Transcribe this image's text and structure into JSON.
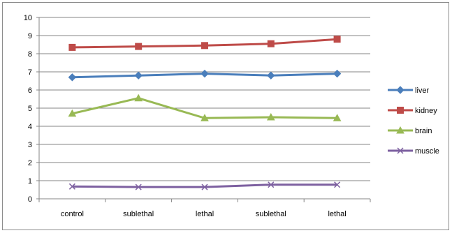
{
  "chart_data": {
    "type": "line",
    "categories": [
      "control",
      "sublethal",
      "lethal",
      "sublethal",
      "lethal"
    ],
    "ylim": [
      0,
      10
    ],
    "yticks": [
      0,
      1,
      2,
      3,
      4,
      5,
      6,
      7,
      8,
      9,
      10
    ],
    "grid": "horizontal major gridlines",
    "legend_position": "right",
    "title": "",
    "xlabel": "",
    "ylabel": "",
    "series": [
      {
        "name": "liver",
        "color": "#4a7ebb",
        "marker": "diamond",
        "values": [
          6.7,
          6.8,
          6.9,
          6.8,
          6.9
        ]
      },
      {
        "name": "kidney",
        "color": "#be4b48",
        "marker": "square",
        "values": [
          8.35,
          8.4,
          8.45,
          8.55,
          8.8
        ]
      },
      {
        "name": "brain",
        "color": "#98b954",
        "marker": "triangle",
        "values": [
          4.7,
          5.55,
          4.45,
          4.5,
          4.45
        ]
      },
      {
        "name": "muscle",
        "color": "#7d60a0",
        "marker": "x",
        "values": [
          0.68,
          0.65,
          0.65,
          0.78,
          0.78
        ]
      }
    ]
  }
}
